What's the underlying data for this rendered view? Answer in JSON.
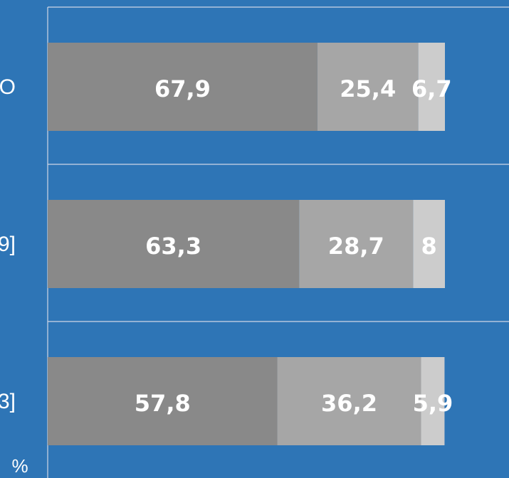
{
  "chart_data": {
    "type": "bar",
    "orientation": "horizontal",
    "stacked": true,
    "categories": [
      "O",
      "9]",
      "3]"
    ],
    "series": [
      {
        "values": [
          67.9,
          63.3,
          57.8
        ],
        "value_labels": [
          "67,9",
          "63,3",
          "57,8"
        ],
        "color": "#898989"
      },
      {
        "values": [
          25.4,
          28.7,
          36.2
        ],
        "value_labels": [
          "25,4",
          "28,7",
          "36,2"
        ],
        "color": "#a6a6a6"
      },
      {
        "values": [
          6.7,
          8,
          5.9
        ],
        "value_labels": [
          "6,7",
          "8",
          "5,9"
        ],
        "color": "#cccccc"
      }
    ],
    "unit": "%",
    "xlim": [
      0,
      100
    ],
    "grid": true,
    "background": "#2e75b6",
    "gridline_color": "#d0d8e6"
  }
}
